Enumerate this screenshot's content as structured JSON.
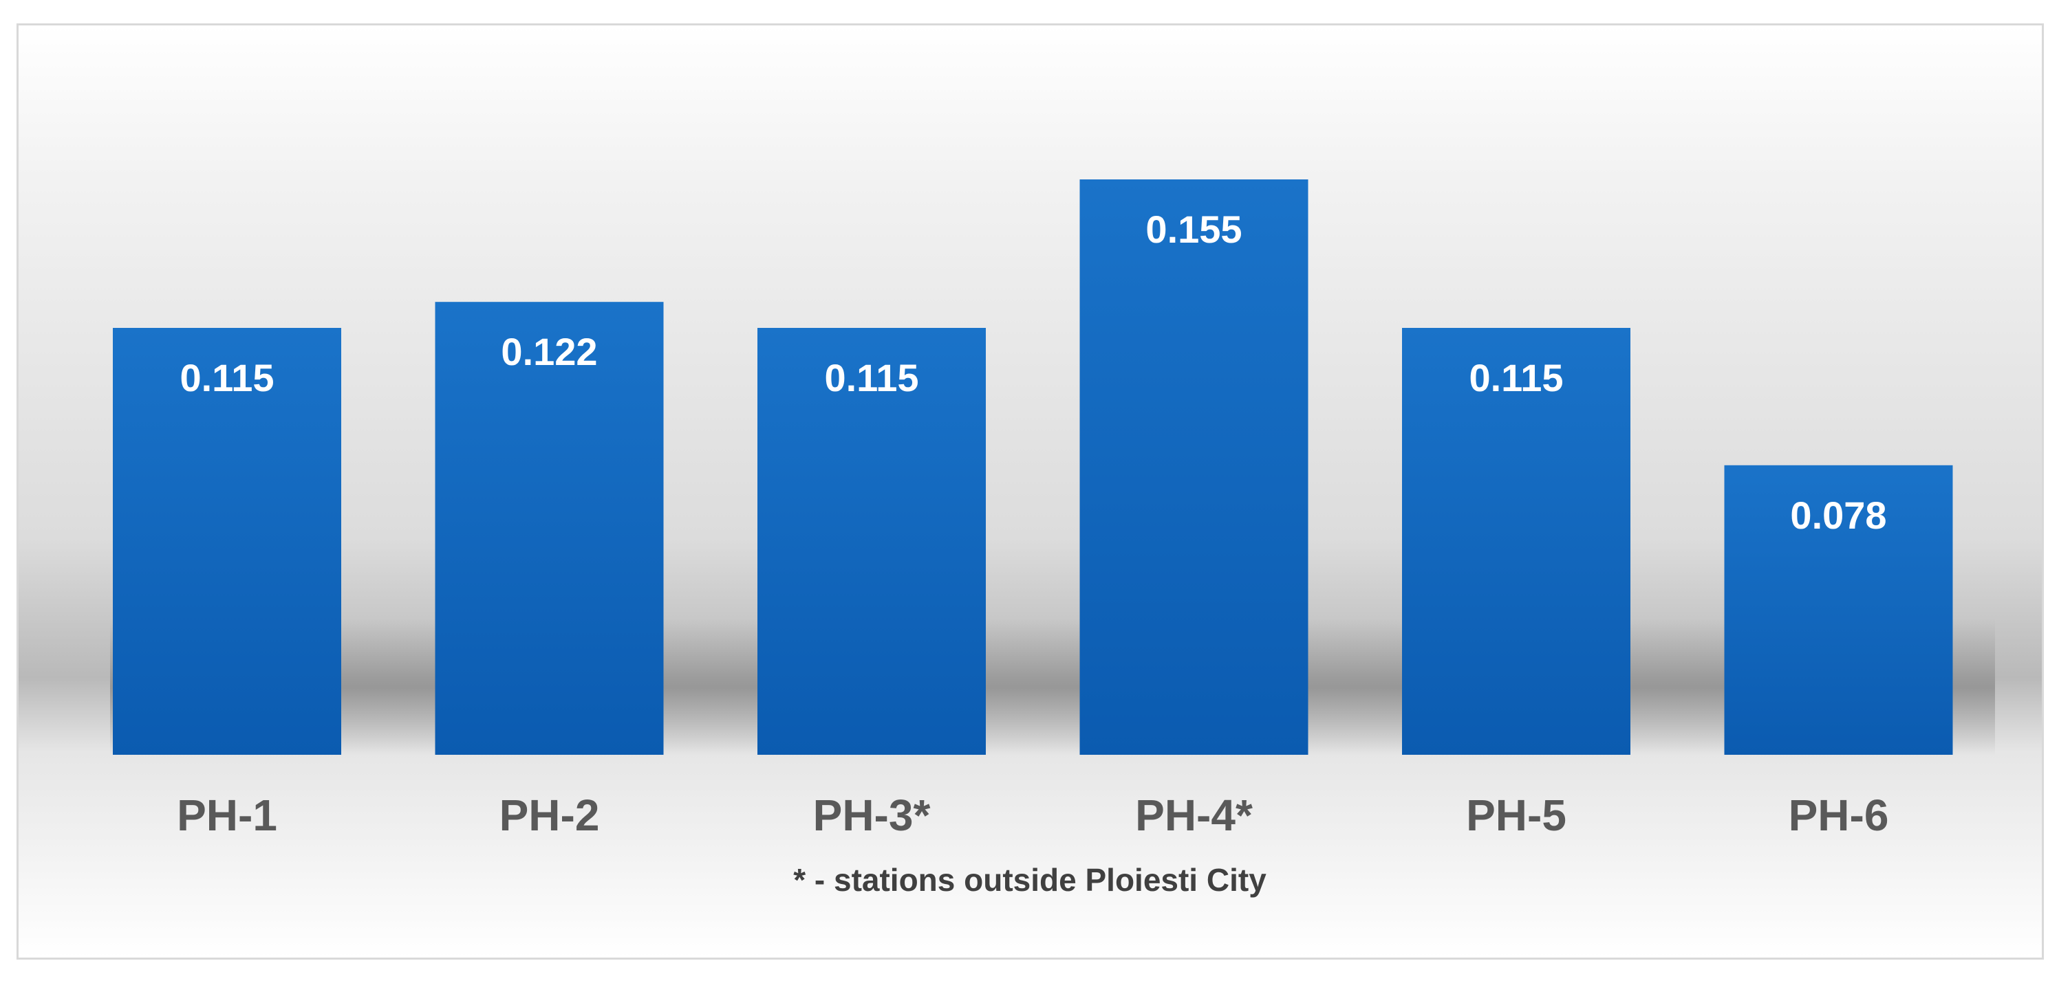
{
  "chart_data": {
    "type": "bar",
    "categories": [
      "PH-1",
      "PH-2",
      "PH-3*",
      "PH-4*",
      "PH-5",
      "PH-6"
    ],
    "values": [
      0.115,
      0.122,
      0.115,
      0.155,
      0.115,
      0.078
    ],
    "data_labels": [
      "0.115",
      "0.122",
      "0.115",
      "0.155",
      "0.115",
      "0.078"
    ],
    "title": "",
    "xlabel": "",
    "ylabel": "",
    "ylim": [
      0,
      0.16
    ],
    "grid": false,
    "legend": "none",
    "annotation": "* - stations outside Ploiesti City",
    "colors": {
      "bar_top": "#1a73c9",
      "bar_bottom": "#0b5bb0",
      "category_text": "#595959",
      "value_text": "#ffffff",
      "frame": "#d9d9d9"
    }
  }
}
